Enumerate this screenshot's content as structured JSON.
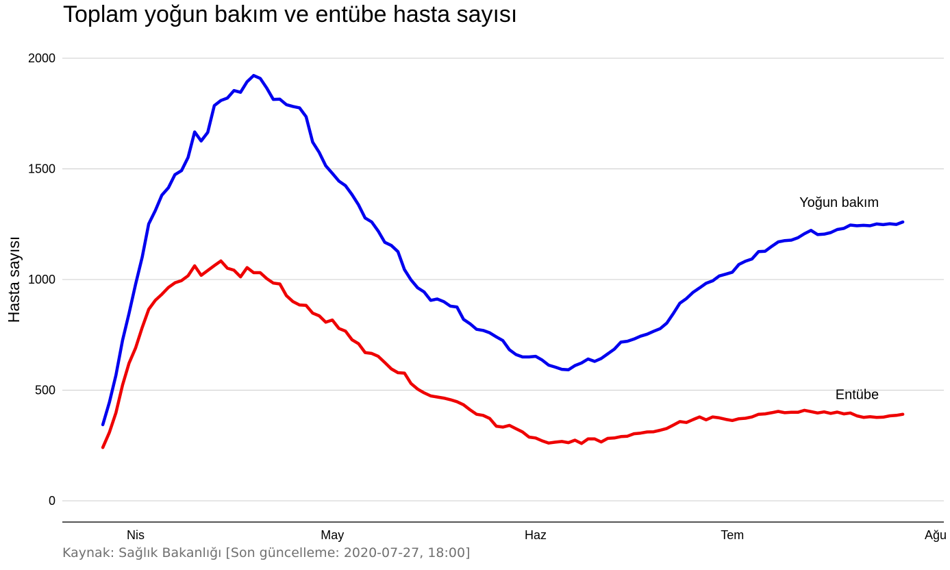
{
  "chart_data": {
    "type": "line",
    "title": "Toplam yoğun bakım ve entübe hasta sayısı",
    "caption": "Kaynak: Sağlık Bakanlığı [Son güncelleme: 2020-07-27, 18:00]",
    "ylabel": "Hasta sayısı",
    "xlabel": "",
    "ylim": [
      -100,
      2050
    ],
    "xlim": [
      "2020-03-22",
      "2020-08-01"
    ],
    "yticks": [
      {
        "value": 0,
        "label": "0"
      },
      {
        "value": 500,
        "label": "500"
      },
      {
        "value": 1000,
        "label": "1000"
      },
      {
        "value": 1500,
        "label": "1500"
      },
      {
        "value": 2000,
        "label": "2000"
      }
    ],
    "xticks": [
      {
        "date": "2020-04-01",
        "label": "Nis"
      },
      {
        "date": "2020-05-01",
        "label": "May"
      },
      {
        "date": "2020-06-01",
        "label": "Haz"
      },
      {
        "date": "2020-07-01",
        "label": "Tem"
      },
      {
        "date": "2020-08-01",
        "label": "Ağu"
      }
    ],
    "grid": "horizontal",
    "legend": "direct labels at right end of lines",
    "series": [
      {
        "name": "Yoğun bakım",
        "color": "#0000ee",
        "points": [
          [
            "2020-03-27",
            344
          ],
          [
            "2020-03-28",
            445
          ],
          [
            "2020-03-29",
            568
          ],
          [
            "2020-03-30",
            725
          ],
          [
            "2020-03-31",
            847
          ],
          [
            "2020-04-01",
            979
          ],
          [
            "2020-04-02",
            1101
          ],
          [
            "2020-04-03",
            1251
          ],
          [
            "2020-04-04",
            1311
          ],
          [
            "2020-04-05",
            1381
          ],
          [
            "2020-04-06",
            1415
          ],
          [
            "2020-04-07",
            1474
          ],
          [
            "2020-04-08",
            1492
          ],
          [
            "2020-04-09",
            1552
          ],
          [
            "2020-04-10",
            1667
          ],
          [
            "2020-04-11",
            1626
          ],
          [
            "2020-04-12",
            1665
          ],
          [
            "2020-04-13",
            1786
          ],
          [
            "2020-04-14",
            1809
          ],
          [
            "2020-04-15",
            1820
          ],
          [
            "2020-04-16",
            1854
          ],
          [
            "2020-04-17",
            1846
          ],
          [
            "2020-04-18",
            1894
          ],
          [
            "2020-04-19",
            1922
          ],
          [
            "2020-04-20",
            1909
          ],
          [
            "2020-04-21",
            1865
          ],
          [
            "2020-04-22",
            1814
          ],
          [
            "2020-04-23",
            1815
          ],
          [
            "2020-04-24",
            1790
          ],
          [
            "2020-04-25",
            1782
          ],
          [
            "2020-04-26",
            1776
          ],
          [
            "2020-04-27",
            1736
          ],
          [
            "2020-04-28",
            1621
          ],
          [
            "2020-04-29",
            1574
          ],
          [
            "2020-04-30",
            1514
          ],
          [
            "2020-05-01",
            1480
          ],
          [
            "2020-05-02",
            1445
          ],
          [
            "2020-05-03",
            1424
          ],
          [
            "2020-05-04",
            1384
          ],
          [
            "2020-05-05",
            1337
          ],
          [
            "2020-05-06",
            1278
          ],
          [
            "2020-05-07",
            1260
          ],
          [
            "2020-05-08",
            1219
          ],
          [
            "2020-05-09",
            1168
          ],
          [
            "2020-05-10",
            1154
          ],
          [
            "2020-05-11",
            1126
          ],
          [
            "2020-05-12",
            1045
          ],
          [
            "2020-05-13",
            998
          ],
          [
            "2020-05-14",
            963
          ],
          [
            "2020-05-15",
            944
          ],
          [
            "2020-05-16",
            906
          ],
          [
            "2020-05-17",
            912
          ],
          [
            "2020-05-18",
            900
          ],
          [
            "2020-05-19",
            880
          ],
          [
            "2020-05-20",
            876
          ],
          [
            "2020-05-21",
            820
          ],
          [
            "2020-05-22",
            800
          ],
          [
            "2020-05-23",
            775
          ],
          [
            "2020-05-24",
            770
          ],
          [
            "2020-05-25",
            759
          ],
          [
            "2020-05-26",
            741
          ],
          [
            "2020-05-27",
            724
          ],
          [
            "2020-05-28",
            683
          ],
          [
            "2020-05-29",
            661
          ],
          [
            "2020-05-30",
            650
          ],
          [
            "2020-05-31",
            650
          ],
          [
            "2020-06-01",
            653
          ],
          [
            "2020-06-02",
            636
          ],
          [
            "2020-06-03",
            613
          ],
          [
            "2020-06-04",
            604
          ],
          [
            "2020-06-05",
            594
          ],
          [
            "2020-06-06",
            592
          ],
          [
            "2020-06-07",
            611
          ],
          [
            "2020-06-08",
            623
          ],
          [
            "2020-06-09",
            641
          ],
          [
            "2020-06-10",
            630
          ],
          [
            "2020-06-11",
            643
          ],
          [
            "2020-06-12",
            664
          ],
          [
            "2020-06-13",
            685
          ],
          [
            "2020-06-14",
            717
          ],
          [
            "2020-06-15",
            721
          ],
          [
            "2020-06-16",
            731
          ],
          [
            "2020-06-17",
            744
          ],
          [
            "2020-06-18",
            753
          ],
          [
            "2020-06-19",
            766
          ],
          [
            "2020-06-20",
            778
          ],
          [
            "2020-06-21",
            803
          ],
          [
            "2020-06-22",
            846
          ],
          [
            "2020-06-23",
            893
          ],
          [
            "2020-06-24",
            914
          ],
          [
            "2020-06-25",
            942
          ],
          [
            "2020-06-26",
            962
          ],
          [
            "2020-06-27",
            983
          ],
          [
            "2020-06-28",
            994
          ],
          [
            "2020-06-29",
            1016
          ],
          [
            "2020-06-30",
            1024
          ],
          [
            "2020-07-01",
            1033
          ],
          [
            "2020-07-02",
            1068
          ],
          [
            "2020-07-03",
            1083
          ],
          [
            "2020-07-04",
            1093
          ],
          [
            "2020-07-05",
            1126
          ],
          [
            "2020-07-06",
            1128
          ],
          [
            "2020-07-07",
            1150
          ],
          [
            "2020-07-08",
            1170
          ],
          [
            "2020-07-09",
            1176
          ],
          [
            "2020-07-10",
            1178
          ],
          [
            "2020-07-11",
            1189
          ],
          [
            "2020-07-12",
            1207
          ],
          [
            "2020-07-13",
            1222
          ],
          [
            "2020-07-14",
            1203
          ],
          [
            "2020-07-15",
            1205
          ],
          [
            "2020-07-16",
            1212
          ],
          [
            "2020-07-17",
            1226
          ],
          [
            "2020-07-18",
            1231
          ],
          [
            "2020-07-19",
            1246
          ],
          [
            "2020-07-20",
            1243
          ],
          [
            "2020-07-21",
            1245
          ],
          [
            "2020-07-22",
            1243
          ],
          [
            "2020-07-23",
            1251
          ],
          [
            "2020-07-24",
            1248
          ],
          [
            "2020-07-25",
            1252
          ],
          [
            "2020-07-26",
            1249
          ],
          [
            "2020-07-27",
            1260
          ]
        ]
      },
      {
        "name": "Entübe",
        "color": "#ee0000",
        "points": [
          [
            "2020-03-27",
            241
          ],
          [
            "2020-03-28",
            309
          ],
          [
            "2020-03-29",
            398
          ],
          [
            "2020-03-30",
            523
          ],
          [
            "2020-03-31",
            622
          ],
          [
            "2020-04-01",
            691
          ],
          [
            "2020-04-02",
            783
          ],
          [
            "2020-04-03",
            865
          ],
          [
            "2020-04-04",
            906
          ],
          [
            "2020-04-05",
            933
          ],
          [
            "2020-04-06",
            964
          ],
          [
            "2020-04-07",
            985
          ],
          [
            "2020-04-08",
            995
          ],
          [
            "2020-04-09",
            1017
          ],
          [
            "2020-04-10",
            1062
          ],
          [
            "2020-04-11",
            1019
          ],
          [
            "2020-04-12",
            1041
          ],
          [
            "2020-04-13",
            1063
          ],
          [
            "2020-04-14",
            1084
          ],
          [
            "2020-04-15",
            1051
          ],
          [
            "2020-04-16",
            1042
          ],
          [
            "2020-04-17",
            1012
          ],
          [
            "2020-04-18",
            1054
          ],
          [
            "2020-04-19",
            1031
          ],
          [
            "2020-04-20",
            1031
          ],
          [
            "2020-04-21",
            1004
          ],
          [
            "2020-04-22",
            984
          ],
          [
            "2020-04-23",
            980
          ],
          [
            "2020-04-24",
            927
          ],
          [
            "2020-04-25",
            900
          ],
          [
            "2020-04-26",
            885
          ],
          [
            "2020-04-27",
            883
          ],
          [
            "2020-04-28",
            848
          ],
          [
            "2020-04-29",
            836
          ],
          [
            "2020-04-30",
            807
          ],
          [
            "2020-05-01",
            817
          ],
          [
            "2020-05-02",
            779
          ],
          [
            "2020-05-03",
            767
          ],
          [
            "2020-05-04",
            728
          ],
          [
            "2020-05-05",
            710
          ],
          [
            "2020-05-06",
            670
          ],
          [
            "2020-05-07",
            666
          ],
          [
            "2020-05-08",
            653
          ],
          [
            "2020-05-09",
            625
          ],
          [
            "2020-05-10",
            596
          ],
          [
            "2020-05-11",
            579
          ],
          [
            "2020-05-12",
            577
          ],
          [
            "2020-05-13",
            530
          ],
          [
            "2020-05-14",
            505
          ],
          [
            "2020-05-15",
            488
          ],
          [
            "2020-05-16",
            474
          ],
          [
            "2020-05-17",
            469
          ],
          [
            "2020-05-18",
            464
          ],
          [
            "2020-05-19",
            457
          ],
          [
            "2020-05-20",
            448
          ],
          [
            "2020-05-21",
            434
          ],
          [
            "2020-05-22",
            411
          ],
          [
            "2020-05-23",
            391
          ],
          [
            "2020-05-24",
            386
          ],
          [
            "2020-05-25",
            372
          ],
          [
            "2020-05-26",
            337
          ],
          [
            "2020-05-27",
            333
          ],
          [
            "2020-05-28",
            341
          ],
          [
            "2020-05-29",
            326
          ],
          [
            "2020-05-30",
            311
          ],
          [
            "2020-05-31",
            288
          ],
          [
            "2020-06-01",
            284
          ],
          [
            "2020-06-02",
            271
          ],
          [
            "2020-06-03",
            261
          ],
          [
            "2020-06-04",
            265
          ],
          [
            "2020-06-05",
            268
          ],
          [
            "2020-06-06",
            263
          ],
          [
            "2020-06-07",
            274
          ],
          [
            "2020-06-08",
            259
          ],
          [
            "2020-06-09",
            280
          ],
          [
            "2020-06-10",
            280
          ],
          [
            "2020-06-11",
            266
          ],
          [
            "2020-06-12",
            282
          ],
          [
            "2020-06-13",
            284
          ],
          [
            "2020-06-14",
            290
          ],
          [
            "2020-06-15",
            292
          ],
          [
            "2020-06-16",
            303
          ],
          [
            "2020-06-17",
            306
          ],
          [
            "2020-06-18",
            311
          ],
          [
            "2020-06-19",
            312
          ],
          [
            "2020-06-20",
            319
          ],
          [
            "2020-06-21",
            327
          ],
          [
            "2020-06-22",
            342
          ],
          [
            "2020-06-23",
            358
          ],
          [
            "2020-06-24",
            354
          ],
          [
            "2020-06-25",
            367
          ],
          [
            "2020-06-26",
            379
          ],
          [
            "2020-06-27",
            366
          ],
          [
            "2020-06-28",
            379
          ],
          [
            "2020-06-29",
            375
          ],
          [
            "2020-06-30",
            368
          ],
          [
            "2020-07-01",
            363
          ],
          [
            "2020-07-02",
            371
          ],
          [
            "2020-07-03",
            373
          ],
          [
            "2020-07-04",
            379
          ],
          [
            "2020-07-05",
            391
          ],
          [
            "2020-07-06",
            393
          ],
          [
            "2020-07-07",
            398
          ],
          [
            "2020-07-08",
            404
          ],
          [
            "2020-07-09",
            398
          ],
          [
            "2020-07-10",
            400
          ],
          [
            "2020-07-11",
            400
          ],
          [
            "2020-07-12",
            409
          ],
          [
            "2020-07-13",
            403
          ],
          [
            "2020-07-14",
            397
          ],
          [
            "2020-07-15",
            402
          ],
          [
            "2020-07-16",
            395
          ],
          [
            "2020-07-17",
            401
          ],
          [
            "2020-07-18",
            393
          ],
          [
            "2020-07-19",
            397
          ],
          [
            "2020-07-20",
            384
          ],
          [
            "2020-07-21",
            377
          ],
          [
            "2020-07-22",
            380
          ],
          [
            "2020-07-23",
            377
          ],
          [
            "2020-07-24",
            378
          ],
          [
            "2020-07-25",
            384
          ],
          [
            "2020-07-26",
            386
          ],
          [
            "2020-07-27",
            391
          ]
        ]
      }
    ],
    "labels": [
      {
        "text": "Yoğun bakım",
        "series": 0
      },
      {
        "text": "Entübe",
        "series": 1
      }
    ]
  }
}
